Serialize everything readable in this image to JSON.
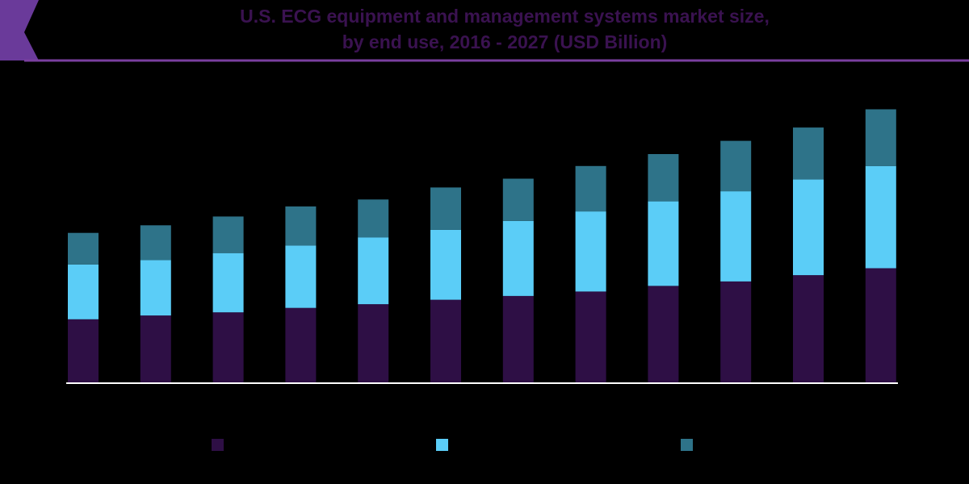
{
  "chart_data": {
    "type": "bar",
    "stacked": true,
    "title_line1": "U.S. ECG equipment and management systems market size,",
    "title_line2": "by end use, 2016 - 2027 (USD Billion)",
    "categories": [
      "",
      "",
      "",
      "",
      "",
      "",
      "",
      "",
      "",
      "",
      "",
      ""
    ],
    "series": [
      {
        "color": "#2e0f45",
        "values": [
          1.0,
          1.06,
          1.11,
          1.18,
          1.24,
          1.31,
          1.37,
          1.44,
          1.53,
          1.6,
          1.7,
          1.81
        ]
      },
      {
        "color": "#5bcdf7",
        "values": [
          0.87,
          0.88,
          0.94,
          0.99,
          1.06,
          1.11,
          1.19,
          1.27,
          1.34,
          1.43,
          1.52,
          1.62
        ]
      },
      {
        "color": "#2e7389",
        "values": [
          0.5,
          0.55,
          0.58,
          0.62,
          0.6,
          0.67,
          0.67,
          0.72,
          0.75,
          0.8,
          0.82,
          0.9
        ]
      }
    ],
    "ylim": [
      0,
      4.4
    ],
    "grid": false,
    "legend_position": "bottom"
  }
}
